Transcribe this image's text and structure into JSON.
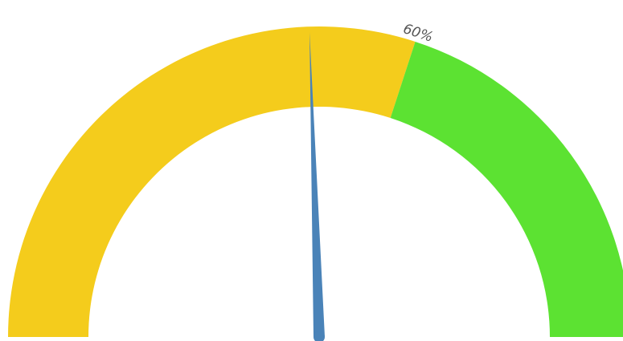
{
  "chart_data": {
    "type": "gauge",
    "min": 0,
    "max": 100,
    "value": 49,
    "bands": [
      {
        "from": 0,
        "to": 60,
        "color": "#f4cc1c"
      },
      {
        "from": 60,
        "to": 100,
        "color": "#5ce232"
      }
    ],
    "threshold_labels": [
      {
        "value": 60,
        "text": "60%"
      }
    ],
    "needle_color": "#4a83b8"
  }
}
